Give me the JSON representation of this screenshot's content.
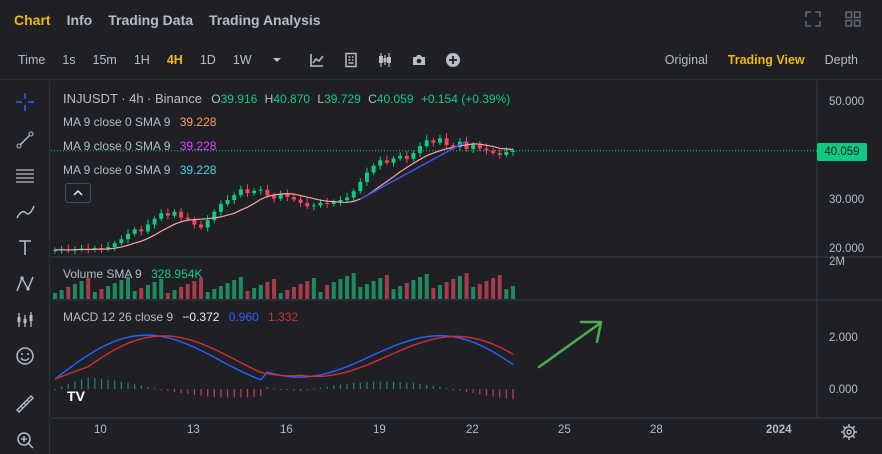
{
  "top_tabs": [
    "Chart",
    "Info",
    "Trading Data",
    "Trading Analysis"
  ],
  "toolbar": {
    "time_label": "Time",
    "intervals": [
      "1s",
      "15m",
      "1H",
      "4H",
      "1D",
      "1W"
    ],
    "active_interval": "4H"
  },
  "view_tabs": [
    "Original",
    "Trading View",
    "Depth"
  ],
  "legend": {
    "symbol": "INJUSDT",
    "interval": "4h",
    "exchange": "Binance",
    "o_label": "O",
    "o_value": "39.916",
    "h_label": "H",
    "h_value": "40.870",
    "l_label": "L",
    "l_value": "39.729",
    "c_label": "C",
    "c_value": "40.059",
    "change": "+0.154 (+0.39%)",
    "ma_label": "MA 9 close 0 SMA 9",
    "ma_values": [
      "39.228",
      "39.228",
      "39.228"
    ],
    "volume_label": "Volume SMA 9",
    "volume_value": "328.954K",
    "macd_label": "MACD 12 26 close 9",
    "macd_values": [
      "−0.372",
      "0.960",
      "1.332"
    ]
  },
  "colors": {
    "up": "#0ecb81",
    "down": "#f6465d",
    "accent": "#f0b90b",
    "ma_colors": [
      "#f7a35c",
      "#e040fb",
      "#4dd0e1"
    ],
    "macd_line": "#2962ff",
    "signal_line": "#d32f2f",
    "arrow": "#4caf50",
    "trendline": "#3f51e0"
  },
  "price_axis": {
    "ticks": [
      "50.000",
      "40.000",
      "30.000",
      "20.000"
    ],
    "current": "40.059"
  },
  "volume_axis": {
    "ticks": [
      "2M"
    ]
  },
  "macd_axis": {
    "ticks": [
      "2.000",
      "0.000"
    ]
  },
  "time_axis": {
    "ticks": [
      "10",
      "13",
      "16",
      "19",
      "22",
      "25",
      "28",
      "2024"
    ]
  },
  "chart_data": {
    "type": "candlestick",
    "series": [
      {
        "name": "INJUSDT",
        "values": [
          19.8,
          19.9,
          19.7,
          20.0,
          20.1,
          19.9,
          20.2,
          20.0,
          20.4,
          21.2,
          22.0,
          23.1,
          24.0,
          23.6,
          25.0,
          26.2,
          27.3,
          26.8,
          27.6,
          26.4,
          26.1,
          25.0,
          24.4,
          25.9,
          27.6,
          29.2,
          30.0,
          31.0,
          32.2,
          31.4,
          31.9,
          32.1,
          31.0,
          30.3,
          31.2,
          30.6,
          30.1,
          29.4,
          28.7,
          28.9,
          29.4,
          29.2,
          29.6,
          30.0,
          30.5,
          31.8,
          33.7,
          35.6,
          37.0,
          38.1,
          37.6,
          38.5,
          39.0,
          38.4,
          39.6,
          41.0,
          42.2,
          41.7,
          42.6,
          41.2,
          40.8,
          41.9,
          40.4,
          41.3,
          40.5,
          40.1,
          39.6,
          39.2,
          39.8,
          40.06
        ]
      }
    ]
  }
}
